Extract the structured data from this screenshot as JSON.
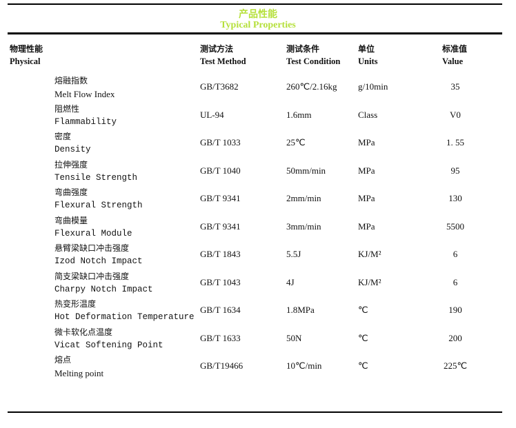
{
  "title": {
    "cn": "产品性能",
    "en": "Typical Properties"
  },
  "colors": {
    "title": "#b5e03a"
  },
  "headers": [
    {
      "cn": "物理性能",
      "en": "Physical"
    },
    {
      "cn": "测试方法",
      "en": "Test Method"
    },
    {
      "cn": "测试条件",
      "en": "Test Condition"
    },
    {
      "cn": "单位",
      "en": "Units"
    },
    {
      "cn": "标准值",
      "en": "Value"
    }
  ],
  "rows": [
    {
      "cn": "熔融指数",
      "en": "Melt Flow Index",
      "method": "GB/T3682",
      "condition": "260℃/2.16kg",
      "unit": "g/10min",
      "value": "35"
    },
    {
      "cn": "阻燃性",
      "en": "Flammability",
      "method": "UL-94",
      "condition": "1.6mm",
      "unit": "Class",
      "value": "V0"
    },
    {
      "cn": "密度",
      "en": "Density",
      "method": "GB/T 1033",
      "condition": "25℃",
      "unit": "MPa",
      "value": "1. 55"
    },
    {
      "cn": "拉伸强度",
      "en": "Tensile Strength",
      "method": "GB/T 1040",
      "condition": "50mm/min",
      "unit": "MPa",
      "value": "95"
    },
    {
      "cn": "弯曲强度",
      "en": "Flexural Strength",
      "method": "GB/T 9341",
      "condition": "2mm/min",
      "unit": "MPa",
      "value": "130"
    },
    {
      "cn": "弯曲模量",
      "en": "Flexural Module",
      "method": "GB/T 9341",
      "condition": "3mm/min",
      "unit": "MPa",
      "value": "5500"
    },
    {
      "cn": "悬臂梁缺口冲击强度",
      "en": "Izod Notch  Impact",
      "method": "GB/T 1843",
      "condition": "5.5J",
      "unit": "KJ/M²",
      "value": "6"
    },
    {
      "cn": "简支梁缺口冲击强度",
      "en": "Charpy Notch  Impact",
      "method": "GB/T 1043",
      "condition": "4J",
      "unit": "KJ/M²",
      "value": "6"
    },
    {
      "cn": "热变形温度",
      "en": "Hot Deformation Temperature",
      "method": "GB/T 1634",
      "condition": "1.8MPa",
      "unit": "℃",
      "value": "190"
    },
    {
      "cn": "微卡软化点温度",
      "en": "Vicat Softening Point",
      "method": "GB/T 1633",
      "condition": "50N",
      "unit": "℃",
      "value": "200"
    },
    {
      "cn": "熔点",
      "en": "Melting point",
      "method": "GB/T19466",
      "condition": "10℃/min",
      "unit": "℃",
      "value": "225℃"
    }
  ]
}
